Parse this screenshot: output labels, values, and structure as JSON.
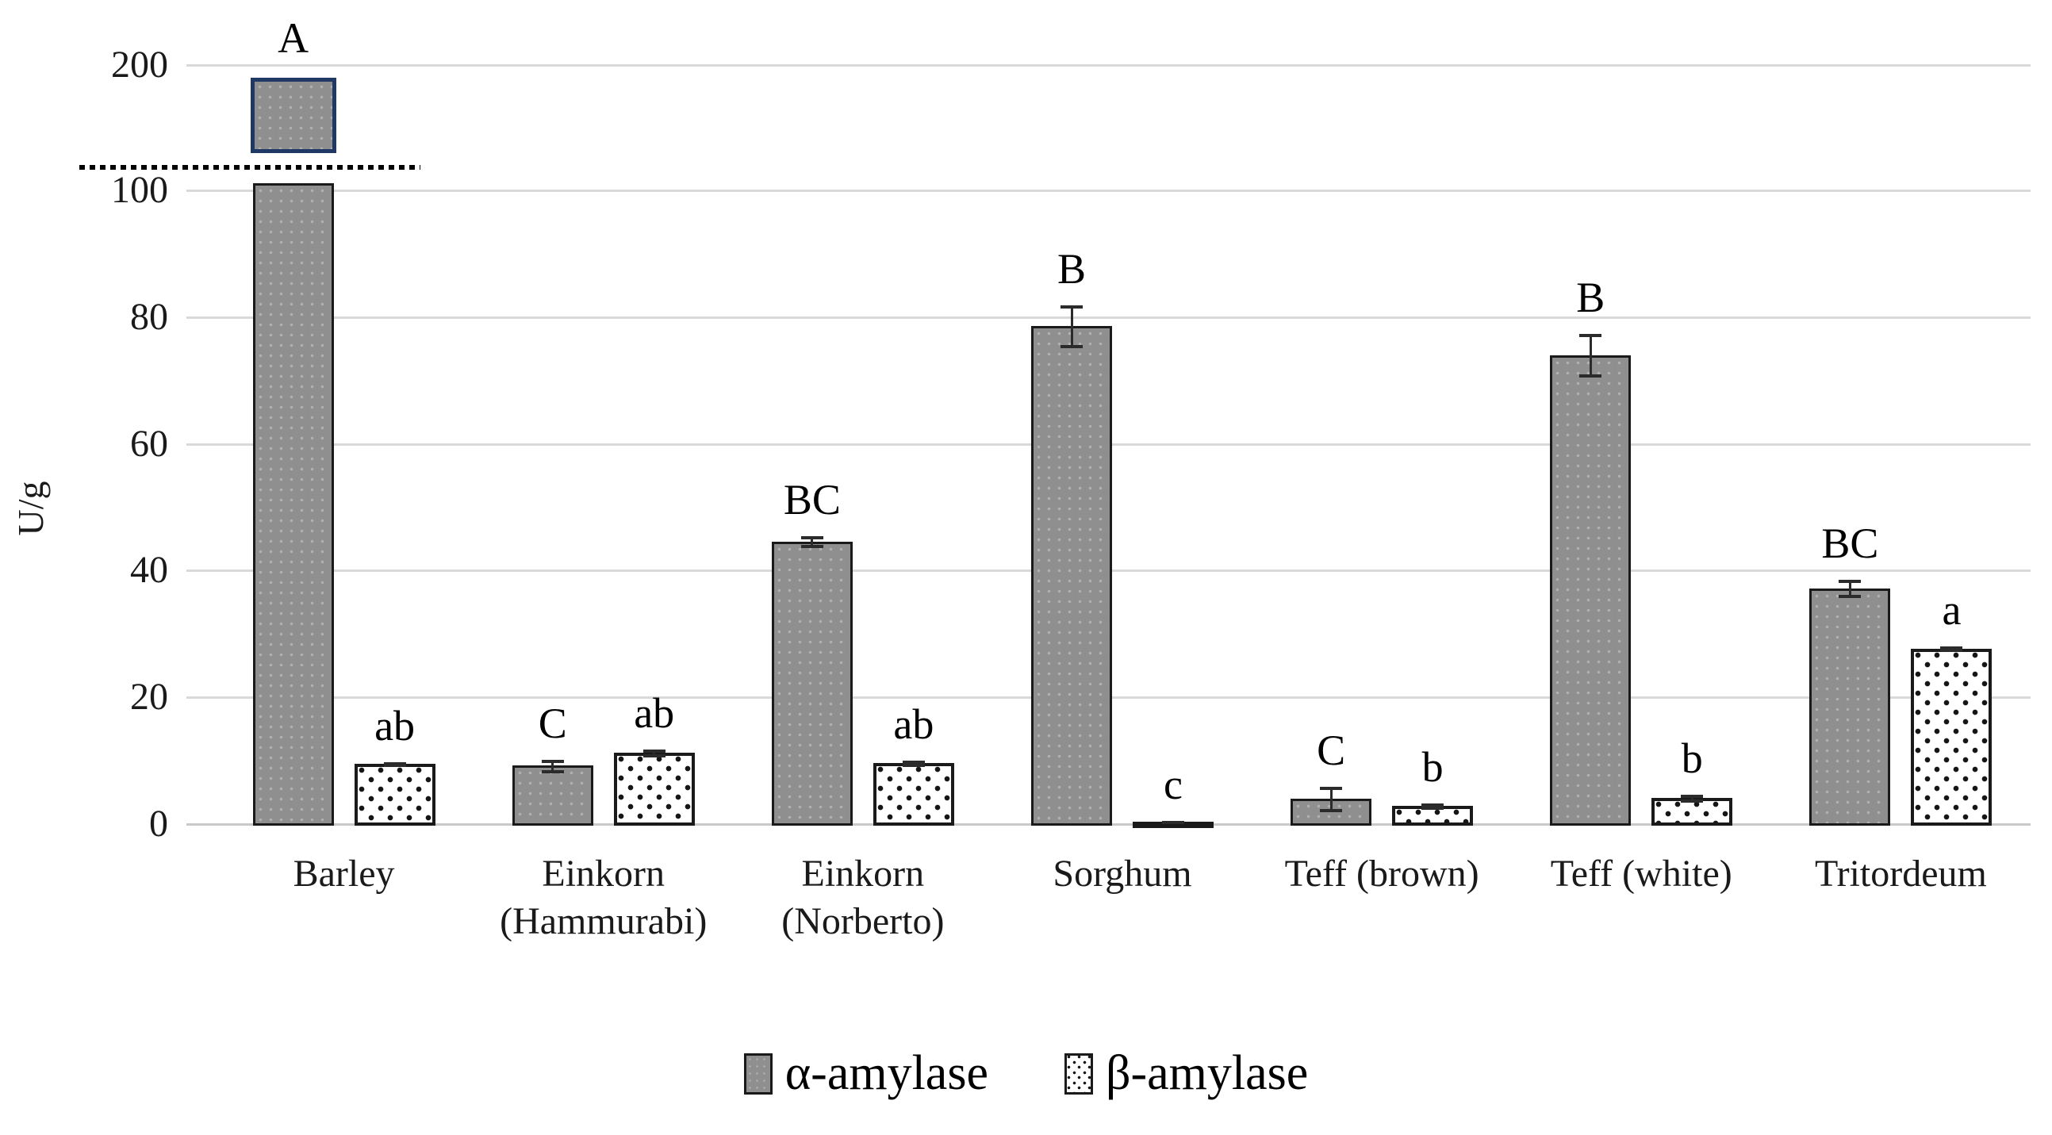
{
  "figure": {
    "background": "#ffffff"
  },
  "chart_data": {
    "type": "bar",
    "title": "",
    "xlabel": "",
    "ylabel": "U/g",
    "categories": [
      "Barley",
      "Einkorn (Hammurabi)",
      "Einkorn (Norberto)",
      "Sorghum",
      "Teff (brown)",
      "Teff (white)",
      "Tritordeum"
    ],
    "category_lines": [
      [
        "Barley"
      ],
      [
        "Einkorn",
        "(Hammurabi)"
      ],
      [
        "Einkorn",
        "(Norberto)"
      ],
      [
        "Sorghum"
      ],
      [
        "Teff (brown)"
      ],
      [
        "Teff (white)"
      ],
      [
        "Tritordeum"
      ]
    ],
    "series": [
      {
        "name": "α-amylase",
        "values": [
          190,
          9.2,
          44.6,
          78.6,
          4.0,
          74.0,
          37.2
        ],
        "errors": [
          null,
          0.9,
          0.8,
          3.2,
          1.9,
          3.3,
          1.3
        ],
        "letters": [
          "A",
          "C",
          "BC",
          "B",
          "C",
          "B",
          "BC"
        ]
      },
      {
        "name": "β-amylase",
        "values": [
          9.5,
          11.3,
          9.6,
          0.4,
          2.9,
          4.1,
          27.7
        ],
        "errors": [
          0.3,
          0.5,
          0.4,
          0.15,
          0.4,
          0.5,
          0.3
        ],
        "letters": [
          "ab",
          "ab",
          "ab",
          "c",
          "b",
          "b",
          "a"
        ]
      }
    ],
    "y_axis": {
      "ticks": [
        0,
        20,
        40,
        60,
        80,
        100,
        200
      ],
      "break_after": 100,
      "broken_axis": true,
      "lower_range": [
        0,
        100
      ],
      "upper_range": [
        100,
        200
      ]
    },
    "grid": "horizontal",
    "legend_position": "bottom",
    "colors": {
      "alpha_fill": "#8f8f8f",
      "beta_fill": "#ffffff",
      "beta_dots": "#151515",
      "bar_border": "#1a1a1a",
      "broken_segment_border": "#1f3864",
      "gridline": "#d9d9d9"
    }
  }
}
